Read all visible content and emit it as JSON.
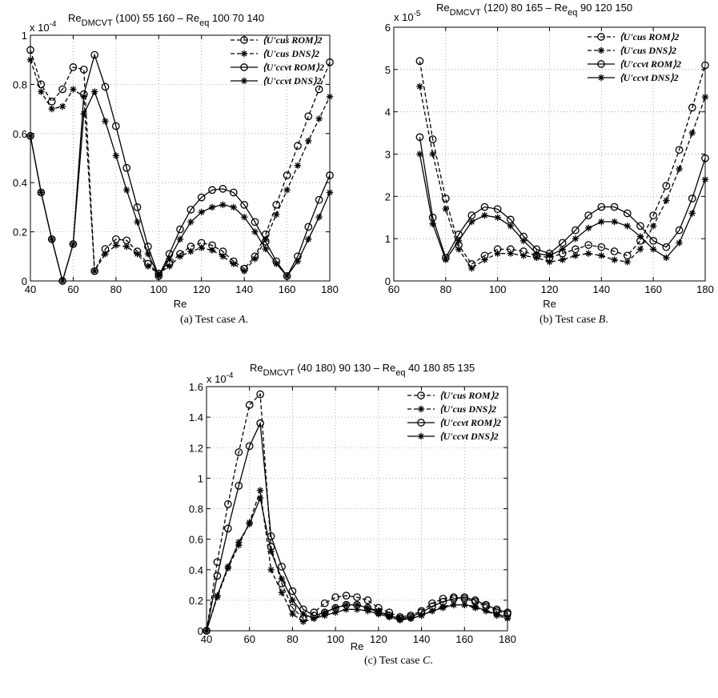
{
  "colors": {
    "ink": "#000000",
    "grid": "#9a9a9a",
    "background": "#ffffff"
  },
  "legend_labels": [
    "⟨U'cus ROM⟩2",
    "⟨U'cus DNS⟩2",
    "⟨U'ccvt ROM⟩2",
    "⟨U'ccvt DNS⟩2"
  ],
  "chart_data": [
    {
      "type": "line",
      "title": "Re_DMCVT (100) 55 160 – Re_eq 100 70 140",
      "title_main": "Re",
      "title_sub": "DMCVT",
      "title_rest": " (100) 55 160  –  Re",
      "title_sub2": "eq",
      "title_end": " 100 70 140",
      "exponent_label": "x 10",
      "exponent_power": "-4",
      "xlabel": "Re",
      "ylabel": "",
      "xlim": [
        40,
        180
      ],
      "ylim": [
        0,
        1.0
      ],
      "xticks": [
        "40",
        "60",
        "80",
        "100",
        "120",
        "140",
        "160",
        "180"
      ],
      "yticks": [
        "0",
        "0.2",
        "0.4",
        "0.6",
        "0.8",
        "1"
      ],
      "grid": true,
      "legend_position": "top-right",
      "caption_prefix": "(a)  Test case ",
      "caption_letter": "A",
      "caption_suffix": ".",
      "x": [
        40,
        45,
        50,
        55,
        60,
        65,
        70,
        75,
        80,
        85,
        90,
        95,
        100,
        105,
        110,
        115,
        120,
        125,
        130,
        135,
        140,
        145,
        150,
        155,
        160,
        165,
        170,
        175,
        180
      ],
      "series": [
        {
          "name": "⟨U'cus ROM⟩2",
          "marker": "circle",
          "dash": "dashed",
          "values": [
            0.94,
            0.8,
            0.73,
            0.78,
            0.87,
            0.86,
            0.04,
            0.13,
            0.17,
            0.165,
            0.12,
            0.07,
            0.03,
            0.07,
            0.11,
            0.14,
            0.155,
            0.145,
            0.12,
            0.08,
            0.05,
            0.1,
            0.19,
            0.31,
            0.43,
            0.55,
            0.67,
            0.78,
            0.89
          ]
        },
        {
          "name": "⟨U'cus DNS⟩2",
          "marker": "star",
          "dash": "dashed",
          "values": [
            0.9,
            0.77,
            0.7,
            0.71,
            0.78,
            0.75,
            0.04,
            0.11,
            0.145,
            0.14,
            0.11,
            0.06,
            0.03,
            0.06,
            0.1,
            0.12,
            0.135,
            0.125,
            0.1,
            0.07,
            0.04,
            0.09,
            0.17,
            0.27,
            0.37,
            0.47,
            0.57,
            0.66,
            0.75
          ]
        },
        {
          "name": "⟨U'ccvt ROM⟩2",
          "marker": "circle",
          "dash": "solid",
          "values": [
            0.59,
            0.36,
            0.17,
            0.0,
            0.15,
            0.76,
            0.92,
            0.79,
            0.63,
            0.46,
            0.3,
            0.14,
            0.02,
            0.11,
            0.21,
            0.29,
            0.34,
            0.37,
            0.375,
            0.36,
            0.31,
            0.24,
            0.16,
            0.08,
            0.02,
            0.1,
            0.22,
            0.33,
            0.43
          ]
        },
        {
          "name": "⟨U'ccvt DNS⟩2",
          "marker": "star",
          "dash": "solid",
          "values": [
            0.59,
            0.36,
            0.17,
            0.0,
            0.15,
            0.68,
            0.77,
            0.65,
            0.51,
            0.37,
            0.24,
            0.11,
            0.02,
            0.09,
            0.17,
            0.24,
            0.28,
            0.3,
            0.31,
            0.3,
            0.26,
            0.2,
            0.13,
            0.07,
            0.02,
            0.08,
            0.17,
            0.26,
            0.36
          ]
        }
      ]
    },
    {
      "type": "line",
      "title": "Re_DMCVT (120) 80 165 – Re_eq 90 120 150",
      "title_main": "Re",
      "title_sub": "DMCVT",
      "title_rest": " (120) 80 165  –  Re",
      "title_sub2": "eq",
      "title_end": " 90 120 150",
      "exponent_label": "x 10",
      "exponent_power": "-5",
      "xlabel": "Re",
      "ylabel": "",
      "xlim": [
        60,
        180
      ],
      "ylim": [
        0,
        6
      ],
      "xticks": [
        "60",
        "80",
        "100",
        "120",
        "140",
        "160",
        "180"
      ],
      "yticks": [
        "0",
        "1",
        "2",
        "3",
        "4",
        "5",
        "6"
      ],
      "grid": true,
      "legend_position": "top-right",
      "caption_prefix": "(b)  Test case ",
      "caption_letter": "B",
      "caption_suffix": ".",
      "x": [
        70,
        75,
        80,
        85,
        90,
        95,
        100,
        105,
        110,
        115,
        120,
        125,
        130,
        135,
        140,
        145,
        150,
        155,
        160,
        165,
        170,
        175,
        180
      ],
      "series": [
        {
          "name": "⟨U'cus ROM⟩2",
          "marker": "circle",
          "dash": "dashed",
          "values": [
            5.2,
            3.35,
            1.95,
            0.85,
            0.4,
            0.6,
            0.75,
            0.75,
            0.7,
            0.6,
            0.55,
            0.65,
            0.75,
            0.85,
            0.8,
            0.7,
            0.6,
            0.95,
            1.55,
            2.25,
            3.1,
            4.1,
            5.1
          ]
        },
        {
          "name": "⟨U'cus DNS⟩2",
          "marker": "star",
          "dash": "dashed",
          "values": [
            4.6,
            3.0,
            1.7,
            0.75,
            0.3,
            0.5,
            0.65,
            0.65,
            0.6,
            0.55,
            0.45,
            0.5,
            0.6,
            0.65,
            0.6,
            0.5,
            0.45,
            0.75,
            1.3,
            1.9,
            2.65,
            3.5,
            4.35
          ]
        },
        {
          "name": "⟨U'ccvt ROM⟩2",
          "marker": "circle",
          "dash": "solid",
          "values": [
            3.4,
            1.5,
            0.55,
            1.1,
            1.55,
            1.75,
            1.7,
            1.45,
            1.05,
            0.75,
            0.65,
            0.9,
            1.2,
            1.55,
            1.75,
            1.75,
            1.6,
            1.3,
            0.95,
            0.8,
            1.2,
            1.95,
            2.9
          ]
        },
        {
          "name": "⟨U'ccvt DNS⟩2",
          "marker": "star",
          "dash": "solid",
          "values": [
            3.0,
            1.35,
            0.5,
            0.95,
            1.4,
            1.55,
            1.5,
            1.3,
            0.95,
            0.65,
            0.6,
            0.75,
            1.0,
            1.25,
            1.4,
            1.4,
            1.3,
            1.05,
            0.75,
            0.55,
            0.9,
            1.6,
            2.4
          ]
        }
      ]
    },
    {
      "type": "line",
      "title": "Re_DMCVT (40 180) 90 130 – Re_eq 40 180 85 135",
      "title_main": "Re",
      "title_sub": "DMCVT",
      "title_rest": " (40 180) 90 130  –  Re",
      "title_sub2": "eq",
      "title_end": " 40 180 85 135",
      "exponent_label": "x 10",
      "exponent_power": "-4",
      "xlabel": "Re",
      "ylabel": "",
      "xlim": [
        40,
        180
      ],
      "ylim": [
        0,
        1.6
      ],
      "xticks": [
        "40",
        "60",
        "80",
        "100",
        "120",
        "140",
        "160",
        "180"
      ],
      "yticks": [
        "0",
        "0.2",
        "0.4",
        "0.6",
        "0.8",
        "1",
        "1.2",
        "1.4",
        "1.6"
      ],
      "grid": true,
      "legend_position": "top-right",
      "caption_prefix": "(c)  Test case ",
      "caption_letter": "C",
      "caption_suffix": ".",
      "x": [
        40,
        45,
        50,
        55,
        60,
        65,
        70,
        75,
        80,
        85,
        90,
        95,
        100,
        105,
        110,
        115,
        120,
        125,
        130,
        135,
        140,
        145,
        150,
        155,
        160,
        165,
        170,
        175,
        180
      ],
      "series": [
        {
          "name": "⟨U'cus ROM⟩2",
          "marker": "circle",
          "dash": "dashed",
          "values": [
            0.0,
            0.45,
            0.83,
            1.17,
            1.48,
            1.55,
            0.55,
            0.31,
            0.15,
            0.08,
            0.12,
            0.18,
            0.22,
            0.23,
            0.22,
            0.2,
            0.15,
            0.12,
            0.09,
            0.1,
            0.13,
            0.18,
            0.21,
            0.22,
            0.21,
            0.19,
            0.16,
            0.13,
            0.11
          ]
        },
        {
          "name": "⟨U'cus DNS⟩2",
          "marker": "star",
          "dash": "dashed",
          "values": [
            0.0,
            0.22,
            0.41,
            0.56,
            0.71,
            0.92,
            0.4,
            0.25,
            0.11,
            0.06,
            0.08,
            0.12,
            0.15,
            0.17,
            0.17,
            0.15,
            0.13,
            0.1,
            0.08,
            0.08,
            0.1,
            0.13,
            0.16,
            0.17,
            0.17,
            0.15,
            0.13,
            0.1,
            0.08
          ]
        },
        {
          "name": "⟨U'ccvt ROM⟩2",
          "marker": "circle",
          "dash": "solid",
          "values": [
            0.0,
            0.36,
            0.67,
            0.95,
            1.21,
            1.36,
            0.62,
            0.42,
            0.26,
            0.14,
            0.1,
            0.12,
            0.15,
            0.17,
            0.17,
            0.15,
            0.12,
            0.1,
            0.08,
            0.09,
            0.12,
            0.16,
            0.19,
            0.21,
            0.22,
            0.2,
            0.17,
            0.14,
            0.12
          ]
        },
        {
          "name": "⟨U'ccvt DNS⟩2",
          "marker": "star",
          "dash": "solid",
          "values": [
            0.0,
            0.23,
            0.42,
            0.58,
            0.7,
            0.87,
            0.52,
            0.34,
            0.2,
            0.11,
            0.08,
            0.1,
            0.12,
            0.14,
            0.14,
            0.13,
            0.11,
            0.09,
            0.07,
            0.08,
            0.1,
            0.13,
            0.15,
            0.17,
            0.17,
            0.16,
            0.13,
            0.11,
            0.09
          ]
        }
      ]
    }
  ]
}
